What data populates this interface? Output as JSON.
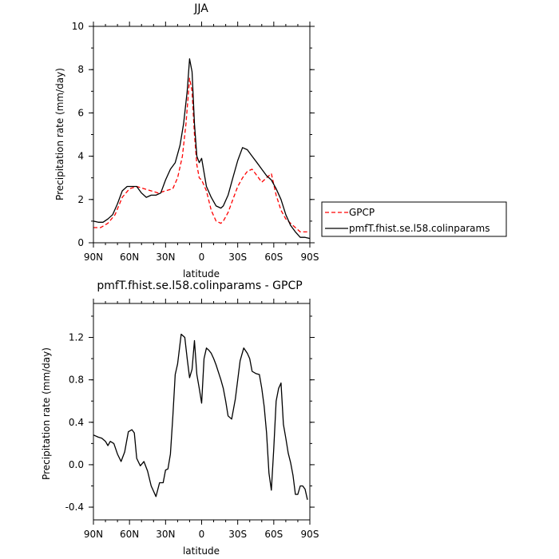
{
  "chart_data": [
    {
      "type": "line",
      "title": "JJA",
      "xlabel": "latitude",
      "ylabel": "Precipitation rate (mm/day)",
      "xlim": [
        90,
        -90
      ],
      "ylim": [
        0,
        10
      ],
      "xticks": [
        90,
        60,
        30,
        0,
        -30,
        -60,
        -90
      ],
      "xtick_labels": [
        "90N",
        "60N",
        "30N",
        "0",
        "30S",
        "60S",
        "90S"
      ],
      "yticks": [
        0,
        2,
        4,
        6,
        8,
        10
      ],
      "ytick_labels": [
        "0",
        "2",
        "4",
        "6",
        "8",
        "10"
      ],
      "legend_position": "right",
      "series": [
        {
          "name": "GPCP",
          "color": "#ff0000",
          "dash": "dashed",
          "x": [
            90,
            84,
            78,
            72,
            66,
            60,
            54,
            48,
            42,
            36,
            30,
            24,
            20,
            16,
            13,
            10,
            8,
            6,
            4,
            2,
            0,
            -4,
            -8,
            -12,
            -16,
            -18,
            -22,
            -26,
            -30,
            -34,
            -38,
            -42,
            -46,
            -50,
            -54,
            -58,
            -62,
            -66,
            -70,
            -74,
            -78,
            -82,
            -86,
            -90
          ],
          "values": [
            0.7,
            0.7,
            0.9,
            1.3,
            2.1,
            2.5,
            2.6,
            2.5,
            2.4,
            2.3,
            2.4,
            2.5,
            3.0,
            4.0,
            5.5,
            7.6,
            7.0,
            5.0,
            3.6,
            3.0,
            2.9,
            2.4,
            1.5,
            1.0,
            0.9,
            1.0,
            1.4,
            2.0,
            2.6,
            3.0,
            3.3,
            3.4,
            3.1,
            2.8,
            3.0,
            3.2,
            2.2,
            1.5,
            1.1,
            0.9,
            0.7,
            0.5,
            0.5,
            0.5
          ]
        },
        {
          "name": "pmfT.fhist.se.l58.colinparams",
          "color": "#000000",
          "dash": "solid",
          "x": [
            90,
            86,
            82,
            78,
            74,
            70,
            66,
            62,
            58,
            54,
            50,
            46,
            42,
            38,
            34,
            30,
            26,
            22,
            18,
            15,
            12,
            10,
            8,
            6,
            4,
            2,
            0,
            -4,
            -8,
            -12,
            -16,
            -18,
            -22,
            -26,
            -30,
            -34,
            -38,
            -42,
            -46,
            -50,
            -54,
            -58,
            -62,
            -66,
            -70,
            -74,
            -78,
            -82,
            -86,
            -90
          ],
          "values": [
            1.0,
            0.95,
            0.95,
            1.1,
            1.3,
            1.8,
            2.4,
            2.6,
            2.6,
            2.6,
            2.3,
            2.1,
            2.2,
            2.2,
            2.3,
            2.9,
            3.4,
            3.7,
            4.5,
            5.5,
            7.0,
            8.5,
            7.9,
            5.5,
            4.0,
            3.7,
            3.9,
            2.6,
            2.1,
            1.7,
            1.6,
            1.7,
            2.2,
            3.0,
            3.8,
            4.4,
            4.3,
            4.0,
            3.7,
            3.4,
            3.1,
            2.9,
            2.5,
            2.0,
            1.3,
            0.8,
            0.5,
            0.25,
            0.25,
            0.2
          ]
        }
      ]
    },
    {
      "type": "line",
      "title": "pmfT.fhist.se.l58.colinparams - GPCP",
      "xlabel": "latitude",
      "ylabel": "Precipitation rate (mm/day)",
      "xlim": [
        90,
        -90
      ],
      "ylim": [
        -0.52,
        1.52
      ],
      "xticks": [
        90,
        60,
        30,
        0,
        -30,
        -60,
        -90
      ],
      "xtick_labels": [
        "90N",
        "60N",
        "30N",
        "0",
        "30S",
        "60S",
        "90S"
      ],
      "yticks": [
        -0.4,
        0.0,
        0.4,
        0.8,
        1.2
      ],
      "ytick_labels": [
        "-0.4",
        "0.0",
        "0.4",
        "0.8",
        "1.2"
      ],
      "series": [
        {
          "color": "#000000",
          "dash": "solid",
          "x": [
            90,
            86,
            83,
            80,
            78,
            76,
            73,
            70,
            67,
            64,
            61,
            58,
            56,
            54,
            51,
            48,
            45,
            42,
            40,
            38,
            35,
            32,
            30,
            28,
            26,
            24,
            22,
            20,
            17,
            14,
            12,
            10,
            8,
            6,
            4,
            2,
            0,
            -2,
            -4,
            -6,
            -8,
            -10,
            -12,
            -14,
            -16,
            -18,
            -20,
            -22,
            -25,
            -28,
            -30,
            -32,
            -35,
            -38,
            -40,
            -42,
            -45,
            -48,
            -50,
            -52,
            -54,
            -56,
            -58,
            -60,
            -62,
            -64,
            -66,
            -68,
            -70,
            -72,
            -74,
            -76,
            -78,
            -80,
            -82,
            -84,
            -86,
            -88
          ],
          "values": [
            0.28,
            0.26,
            0.25,
            0.22,
            0.18,
            0.22,
            0.2,
            0.1,
            0.03,
            0.12,
            0.31,
            0.33,
            0.3,
            0.06,
            -0.01,
            0.03,
            -0.06,
            -0.2,
            -0.25,
            -0.3,
            -0.17,
            -0.17,
            -0.05,
            -0.04,
            0.1,
            0.45,
            0.85,
            0.95,
            1.23,
            1.2,
            1.0,
            0.82,
            0.9,
            1.17,
            0.85,
            0.72,
            0.58,
            1.0,
            1.1,
            1.08,
            1.05,
            1.0,
            0.94,
            0.87,
            0.8,
            0.72,
            0.6,
            0.46,
            0.43,
            0.62,
            0.8,
            0.98,
            1.1,
            1.05,
            1.0,
            0.88,
            0.86,
            0.85,
            0.72,
            0.55,
            0.3,
            -0.08,
            -0.24,
            0.15,
            0.6,
            0.72,
            0.77,
            0.38,
            0.25,
            0.11,
            0.02,
            -0.1,
            -0.28,
            -0.28,
            -0.2,
            -0.2,
            -0.23,
            -0.33
          ]
        }
      ]
    }
  ]
}
